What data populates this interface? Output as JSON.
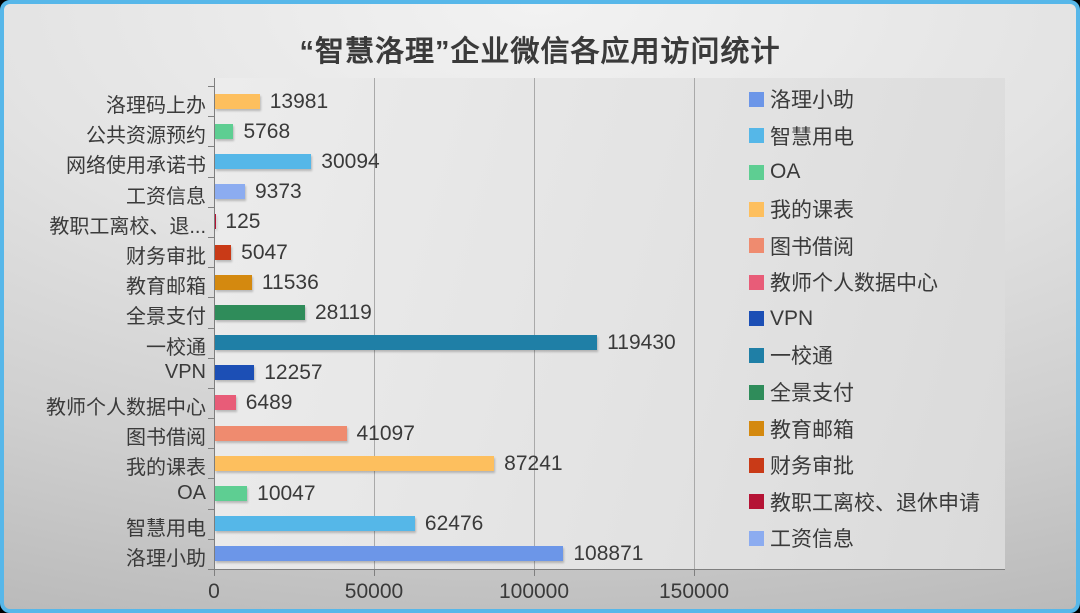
{
  "chart_data": {
    "type": "bar",
    "orientation": "horizontal",
    "title": "“智慧洛理”企业微信各应用访问统计",
    "rows_top_to_bottom": [
      {
        "label": "洛理码上办",
        "value": 13981,
        "color": "#FDBF5E"
      },
      {
        "label": "公共资源预约",
        "value": 5768,
        "color": "#5ECE92"
      },
      {
        "label": "网络使用承诺书",
        "value": 30094,
        "color": "#55B7E8"
      },
      {
        "label": "工资信息",
        "value": 9373,
        "color": "#8CACF0"
      },
      {
        "label": "教职工离校、退...",
        "value": 125,
        "color": "#B51335"
      },
      {
        "label": "财务审批",
        "value": 5047,
        "color": "#C93A17"
      },
      {
        "label": "教育邮箱",
        "value": 11536,
        "color": "#D4890F"
      },
      {
        "label": "全景支付",
        "value": 28119,
        "color": "#2F8C5A"
      },
      {
        "label": "一校通",
        "value": 119430,
        "color": "#1F7FA6"
      },
      {
        "label": "VPN",
        "value": 12257,
        "color": "#1C4FB5"
      },
      {
        "label": "教师个人数据中心",
        "value": 6489,
        "color": "#E85C78"
      },
      {
        "label": "图书借阅",
        "value": 41097,
        "color": "#EF8B6F"
      },
      {
        "label": "我的课表",
        "value": 87241,
        "color": "#FDBF5E"
      },
      {
        "label": "OA",
        "value": 10047,
        "color": "#5ECE92"
      },
      {
        "label": "智慧用电",
        "value": 62476,
        "color": "#55B7E8"
      },
      {
        "label": "洛理小助",
        "value": 108871,
        "color": "#6C96E8"
      }
    ],
    "x_axis": {
      "ticks": [
        0,
        50000,
        100000,
        150000
      ],
      "tick_labels": [
        "0",
        "50000",
        "100000",
        "150000"
      ],
      "max": 150000,
      "gridlines": true
    },
    "data_labels": true,
    "legend": {
      "position": "right",
      "items": [
        {
          "label": "洛理小助",
          "color": "#6C96E8"
        },
        {
          "label": "智慧用电",
          "color": "#55B7E8"
        },
        {
          "label": "OA",
          "color": "#5ECE92"
        },
        {
          "label": "我的课表",
          "color": "#FDBF5E"
        },
        {
          "label": "图书借阅",
          "color": "#EF8B6F"
        },
        {
          "label": "教师个人数据中心",
          "color": "#E85C78"
        },
        {
          "label": "VPN",
          "color": "#1C4FB5"
        },
        {
          "label": "一校通",
          "color": "#1F7FA6"
        },
        {
          "label": "全景支付",
          "color": "#2F8C5A"
        },
        {
          "label": "教育邮箱",
          "color": "#D4890F"
        },
        {
          "label": "财务审批",
          "color": "#C93A17"
        },
        {
          "label": "教职工离校、退休申请",
          "color": "#B51335"
        },
        {
          "label": "工资信息",
          "color": "#8CACF0"
        }
      ]
    },
    "frame_border_color": "#57B7E9"
  }
}
